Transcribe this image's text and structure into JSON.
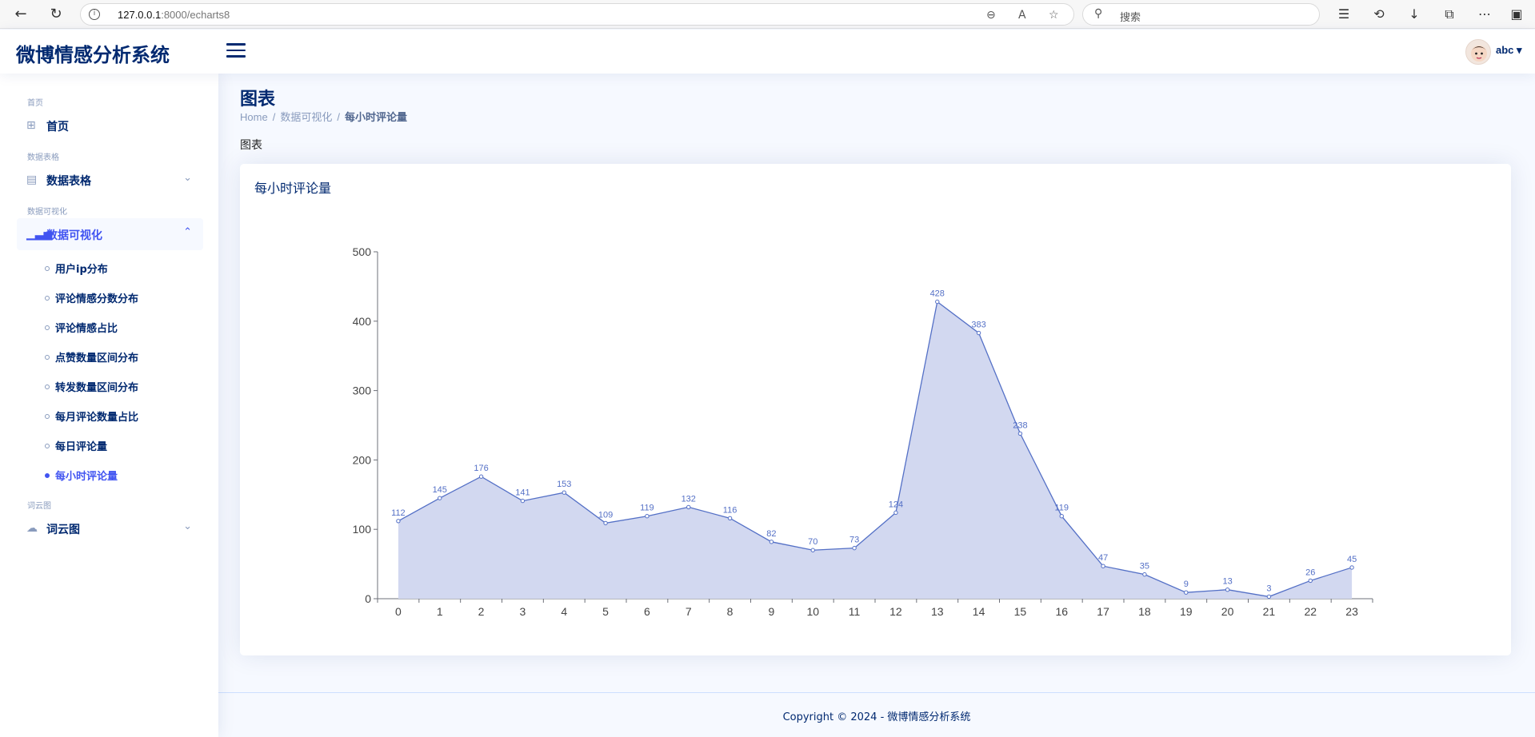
{
  "browser": {
    "url_host": "127.0.0.1",
    "url_path": ":8000/echarts8",
    "search_placeholder": "搜索"
  },
  "app": {
    "logo": "微博情感分析系统",
    "user": "abc"
  },
  "sidebar": {
    "sections": [
      {
        "heading": "首页",
        "label": "首页"
      },
      {
        "heading": "数据表格",
        "label": "数据表格"
      },
      {
        "heading": "数据可视化",
        "label": "数据可视化"
      },
      {
        "heading": "词云图",
        "label": "词云图"
      }
    ],
    "sub_items": [
      "用户ip分布",
      "评论情感分数分布",
      "评论情感占比",
      "点赞数量区间分布",
      "转发数量区间分布",
      "每月评论数量占比",
      "每日评论量",
      "每小时评论量"
    ]
  },
  "main": {
    "title": "图表",
    "breadcrumb": [
      "Home",
      "数据可视化",
      "每小时评论量"
    ],
    "section_label": "图表",
    "card_title": "每小时评论量"
  },
  "footer": "Copyright © 2024 - 微博情感分析系统",
  "colors": {
    "primary": "#012970",
    "accent": "#4154f1",
    "series_line": "#5470c6",
    "series_area": "#d2d8f0"
  },
  "chart_data": {
    "type": "area",
    "x": [
      "0",
      "1",
      "2",
      "3",
      "4",
      "5",
      "6",
      "7",
      "8",
      "9",
      "10",
      "11",
      "12",
      "13",
      "14",
      "15",
      "16",
      "17",
      "18",
      "19",
      "20",
      "21",
      "22",
      "23"
    ],
    "values": [
      112,
      145,
      176,
      141,
      153,
      109,
      119,
      132,
      116,
      82,
      70,
      73,
      124,
      428,
      383,
      238,
      119,
      47,
      35,
      9,
      13,
      3,
      26,
      45
    ],
    "yticks": [
      0,
      100,
      200,
      300,
      400,
      500
    ],
    "ylim": [
      0,
      500
    ]
  }
}
